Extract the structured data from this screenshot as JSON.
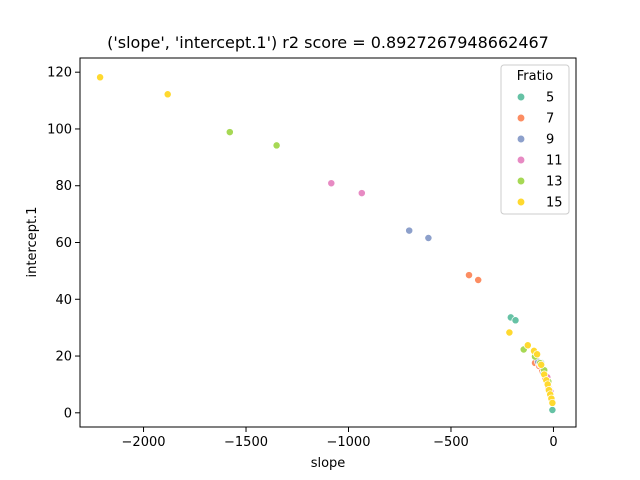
{
  "chart_data": {
    "type": "scatter",
    "title": "('slope', 'intercept.1') r2 score = 0.8927267948662467",
    "xlabel": "slope",
    "ylabel": "intercept.1",
    "xlim": [
      -2310,
      110
    ],
    "ylim": [
      -5,
      125
    ],
    "xticks": [
      -2000,
      -1500,
      -1000,
      -500,
      0
    ],
    "xtick_labels": [
      "−2000",
      "−1500",
      "−1000",
      "−500",
      "0"
    ],
    "yticks": [
      0,
      20,
      40,
      60,
      80,
      100,
      120
    ],
    "ytick_labels": [
      "0",
      "20",
      "40",
      "60",
      "80",
      "100",
      "120"
    ],
    "grid": false,
    "legend": {
      "title": "Fratio",
      "placement": "top-right"
    },
    "series": [
      {
        "name": "5",
        "color": "#66c2a5",
        "x": [
          -208,
          -185,
          -85,
          -60,
          -45,
          -35,
          -20,
          -5
        ],
        "y": [
          33.6,
          32.6,
          20.2,
          17.6,
          15.2,
          12.8,
          8.5,
          1.0
        ]
      },
      {
        "name": "7",
        "color": "#fc8d62",
        "x": [
          -412,
          -367,
          -90,
          -70,
          -55,
          -40,
          -25
        ],
        "y": [
          48.5,
          46.8,
          17.6,
          16.5,
          14.5,
          12.0,
          9.0
        ]
      },
      {
        "name": "9",
        "color": "#8da0cb",
        "x": [
          -704,
          -610,
          -75,
          -50,
          -35,
          -20
        ],
        "y": [
          64.2,
          61.6,
          18.0,
          14.0,
          11.5,
          8.0
        ]
      },
      {
        "name": "11",
        "color": "#e78ac3",
        "x": [
          -1084,
          -935,
          -65,
          -45,
          -30,
          -15
        ],
        "y": [
          80.9,
          77.4,
          17.0,
          14.5,
          12.5,
          7.5
        ]
      },
      {
        "name": "13",
        "color": "#a6d854",
        "x": [
          -1579,
          -1351,
          -145,
          -90,
          -65,
          -45,
          -25
        ],
        "y": [
          98.9,
          94.2,
          22.3,
          19.8,
          17.5,
          15.0,
          11.0
        ]
      },
      {
        "name": "15",
        "color": "#ffd92f",
        "x": [
          -2212,
          -1882,
          -215,
          -125,
          -95,
          -80,
          -60,
          -45,
          -35,
          -28,
          -22,
          -16,
          -10,
          -5
        ],
        "y": [
          118.2,
          112.2,
          28.3,
          23.8,
          21.8,
          20.6,
          16.9,
          13.5,
          11.5,
          10.0,
          8.0,
          6.5,
          5.0,
          3.5
        ]
      }
    ]
  }
}
